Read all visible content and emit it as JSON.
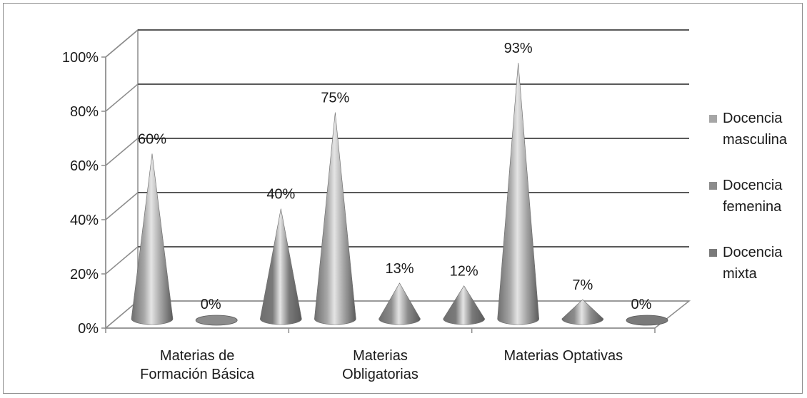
{
  "chart_data": {
    "type": "bar",
    "style": "3d-cone",
    "categories": [
      [
        "Materias de",
        "Formación Básica"
      ],
      [
        "Materias",
        "Obligatorias"
      ],
      [
        "Materias Optativas"
      ]
    ],
    "series": [
      {
        "name": [
          "Docencia",
          "masculina"
        ],
        "values": [
          60,
          75,
          93
        ],
        "labels": [
          "60%",
          "75%",
          "93%"
        ],
        "color": "#a6a6a6"
      },
      {
        "name": [
          "Docencia",
          "femenina"
        ],
        "values": [
          0,
          13,
          7
        ],
        "labels": [
          "0%",
          "13%",
          "7%"
        ],
        "color": "#8c8c8c"
      },
      {
        "name": [
          "Docencia",
          "mixta"
        ],
        "values": [
          40,
          12,
          0
        ],
        "labels": [
          "40%",
          "12%",
          "0%"
        ],
        "color": "#7a7a7a"
      }
    ],
    "y_ticks": [
      "0%",
      "20%",
      "40%",
      "60%",
      "80%",
      "100%"
    ],
    "ylim": [
      0,
      100
    ],
    "grid": true,
    "legend_position": "right"
  }
}
